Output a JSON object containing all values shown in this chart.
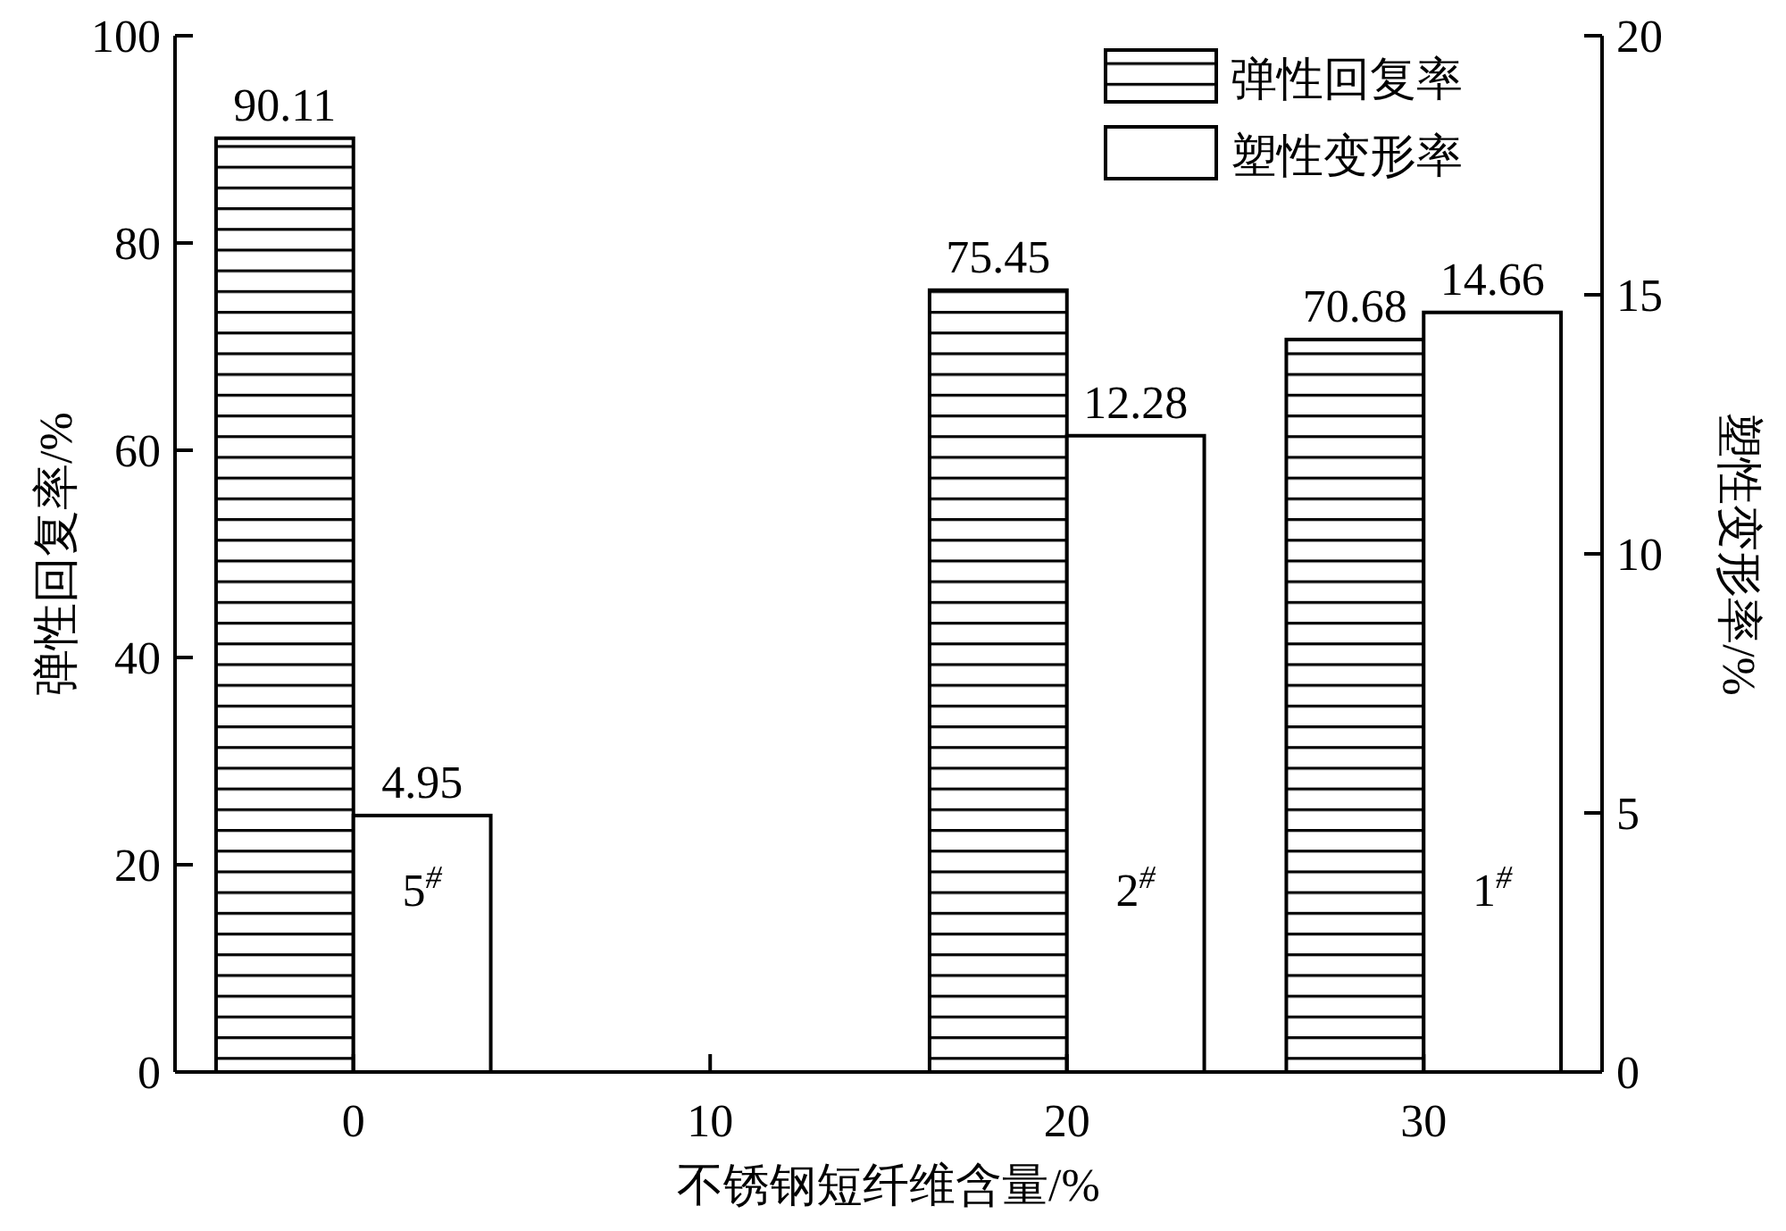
{
  "chart_data": {
    "type": "bar",
    "xlabel": "不锈钢短纤维含量/%",
    "ylabel": "弹性回复率/%",
    "y2label": "塑性变形率/%",
    "x": [
      0,
      20,
      30
    ],
    "series": [
      {
        "name": "弹性回复率",
        "color": "#000000",
        "values": [
          90.11,
          75.45,
          70.68
        ]
      },
      {
        "name": "塑性变形率",
        "color": "#ffffff",
        "values": [
          4.95,
          12.28,
          14.66
        ],
        "axis": "y2"
      }
    ],
    "xlim": [
      -5,
      35
    ],
    "xticks": [
      0,
      10,
      20,
      30
    ],
    "ylim": [
      0,
      100
    ],
    "yticks": [
      0,
      20,
      40,
      60,
      80,
      100
    ],
    "y2lim": [
      0,
      20
    ],
    "y2ticks": [
      0,
      5,
      10,
      15,
      20
    ],
    "data_labels": true,
    "legend": "top right",
    "grid": false,
    "annotations": [
      "5$^{#}$",
      "2$^{#}$",
      "1$^{#}$"
    ]
  }
}
